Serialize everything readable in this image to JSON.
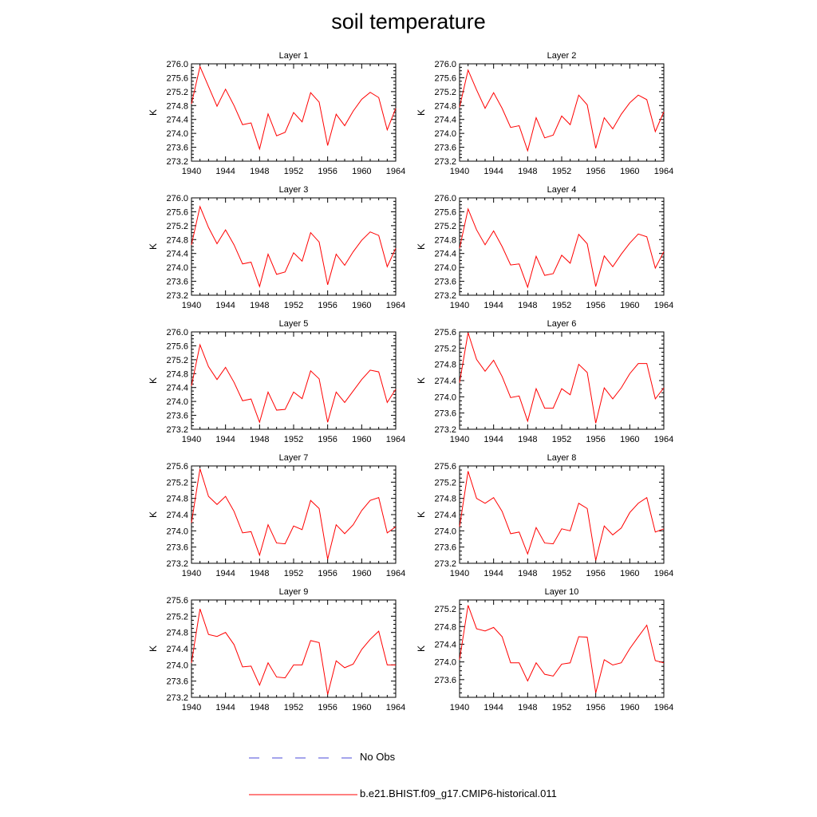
{
  "title": "soil temperature",
  "legend": {
    "no_obs": {
      "label": "No Obs",
      "color": "#4a4ad8"
    },
    "model": {
      "label": "b.e21.BHIST.f09_g17.CMIP6-historical.011",
      "color": "#ff0000"
    }
  },
  "chart_data": [
    {
      "type": "line",
      "title": "Layer 1",
      "ylabel": "K",
      "xlim": [
        1940,
        1964
      ],
      "ylim": [
        273.2,
        276.0
      ],
      "yticks": [
        "273.2",
        "273.6",
        "274.0",
        "274.4",
        "274.8",
        "275.2",
        "275.6",
        "276.0"
      ],
      "xticks": [
        "1940",
        "1944",
        "1948",
        "1952",
        "1956",
        "1960",
        "1964"
      ],
      "x": [
        1940,
        1941,
        1942,
        1943,
        1944,
        1945,
        1946,
        1947,
        1948,
        1949,
        1950,
        1951,
        1952,
        1953,
        1954,
        1955,
        1956,
        1957,
        1958,
        1959,
        1960,
        1961,
        1962,
        1963,
        1964
      ],
      "series": [
        {
          "name": "b.e21.BHIST.f09_g17.CMIP6-historical.011",
          "values": [
            274.85,
            275.92,
            275.35,
            274.78,
            275.27,
            274.8,
            274.25,
            274.3,
            273.55,
            274.56,
            273.93,
            274.03,
            274.6,
            274.33,
            275.17,
            274.9,
            273.65,
            274.55,
            274.22,
            274.64,
            274.98,
            275.18,
            275.03,
            274.1,
            274.72
          ]
        }
      ]
    },
    {
      "type": "line",
      "title": "Layer 2",
      "ylabel": "K",
      "xlim": [
        1940,
        1964
      ],
      "ylim": [
        273.2,
        276.0
      ],
      "yticks": [
        "273.2",
        "273.6",
        "274.0",
        "274.4",
        "274.8",
        "275.2",
        "275.6",
        "276.0"
      ],
      "xticks": [
        "1940",
        "1944",
        "1948",
        "1952",
        "1956",
        "1960",
        "1964"
      ],
      "x": [
        1940,
        1941,
        1942,
        1943,
        1944,
        1945,
        1946,
        1947,
        1948,
        1949,
        1950,
        1951,
        1952,
        1953,
        1954,
        1955,
        1956,
        1957,
        1958,
        1959,
        1960,
        1961,
        1962,
        1963,
        1964
      ],
      "series": [
        {
          "name": "b.e21.BHIST.f09_g17.CMIP6-historical.011",
          "values": [
            274.75,
            275.82,
            275.25,
            274.72,
            275.17,
            274.72,
            274.17,
            274.22,
            273.5,
            274.45,
            273.87,
            273.95,
            274.5,
            274.25,
            275.1,
            274.82,
            273.57,
            274.45,
            274.13,
            274.55,
            274.88,
            275.1,
            274.97,
            274.05,
            274.62
          ]
        }
      ]
    },
    {
      "type": "line",
      "title": "Layer 3",
      "ylabel": "K",
      "xlim": [
        1940,
        1964
      ],
      "ylim": [
        273.2,
        276.0
      ],
      "yticks": [
        "273.2",
        "273.6",
        "274.0",
        "274.4",
        "274.8",
        "275.2",
        "275.6",
        "276.0"
      ],
      "xticks": [
        "1940",
        "1944",
        "1948",
        "1952",
        "1956",
        "1960",
        "1964"
      ],
      "x": [
        1940,
        1941,
        1942,
        1943,
        1944,
        1945,
        1946,
        1947,
        1948,
        1949,
        1950,
        1951,
        1952,
        1953,
        1954,
        1955,
        1956,
        1957,
        1958,
        1959,
        1960,
        1961,
        1962,
        1963,
        1964
      ],
      "series": [
        {
          "name": "b.e21.BHIST.f09_g17.CMIP6-historical.011",
          "values": [
            274.65,
            275.75,
            275.15,
            274.68,
            275.08,
            274.65,
            274.1,
            274.15,
            273.45,
            274.38,
            273.8,
            273.87,
            274.42,
            274.18,
            275.0,
            274.73,
            273.5,
            274.38,
            274.06,
            274.45,
            274.78,
            275.02,
            274.92,
            274.02,
            274.55
          ]
        }
      ]
    },
    {
      "type": "line",
      "title": "Layer 4",
      "ylabel": "K",
      "xlim": [
        1940,
        1964
      ],
      "ylim": [
        273.2,
        276.0
      ],
      "yticks": [
        "273.2",
        "273.6",
        "274.0",
        "274.4",
        "274.8",
        "275.2",
        "275.6",
        "276.0"
      ],
      "xticks": [
        "1940",
        "1944",
        "1948",
        "1952",
        "1956",
        "1960",
        "1964"
      ],
      "x": [
        1940,
        1941,
        1942,
        1943,
        1944,
        1945,
        1946,
        1947,
        1948,
        1949,
        1950,
        1951,
        1952,
        1953,
        1954,
        1955,
        1956,
        1957,
        1958,
        1959,
        1960,
        1961,
        1962,
        1963,
        1964
      ],
      "series": [
        {
          "name": "b.e21.BHIST.f09_g17.CMIP6-historical.011",
          "values": [
            274.55,
            275.68,
            275.08,
            274.65,
            275.05,
            274.6,
            274.07,
            274.1,
            273.43,
            274.32,
            273.77,
            273.82,
            274.35,
            274.12,
            274.95,
            274.68,
            273.45,
            274.33,
            274.02,
            274.38,
            274.7,
            274.96,
            274.88,
            273.98,
            274.45
          ]
        }
      ]
    },
    {
      "type": "line",
      "title": "Layer 5",
      "ylabel": "K",
      "xlim": [
        1940,
        1964
      ],
      "ylim": [
        273.2,
        276.0
      ],
      "yticks": [
        "273.2",
        "273.6",
        "274.0",
        "274.4",
        "274.8",
        "275.2",
        "275.6",
        "276.0"
      ],
      "xticks": [
        "1940",
        "1944",
        "1948",
        "1952",
        "1956",
        "1960",
        "1964"
      ],
      "x": [
        1940,
        1941,
        1942,
        1943,
        1944,
        1945,
        1946,
        1947,
        1948,
        1949,
        1950,
        1951,
        1952,
        1953,
        1954,
        1955,
        1956,
        1957,
        1958,
        1959,
        1960,
        1961,
        1962,
        1963,
        1964
      ],
      "series": [
        {
          "name": "b.e21.BHIST.f09_g17.CMIP6-historical.011",
          "values": [
            274.45,
            275.63,
            275.0,
            274.63,
            274.98,
            274.55,
            274.02,
            274.07,
            273.4,
            274.27,
            273.75,
            273.77,
            274.27,
            274.08,
            274.88,
            274.65,
            273.4,
            274.27,
            273.97,
            274.3,
            274.63,
            274.9,
            274.85,
            273.97,
            274.35
          ]
        }
      ]
    },
    {
      "type": "line",
      "title": "Layer 6",
      "ylabel": "K",
      "xlim": [
        1940,
        1964
      ],
      "ylim": [
        273.2,
        275.6
      ],
      "yticks": [
        "273.2",
        "273.6",
        "274.0",
        "274.4",
        "274.8",
        "275.2",
        "275.6"
      ],
      "xticks": [
        "1940",
        "1944",
        "1948",
        "1952",
        "1956",
        "1960",
        "1964"
      ],
      "x": [
        1940,
        1941,
        1942,
        1943,
        1944,
        1945,
        1946,
        1947,
        1948,
        1949,
        1950,
        1951,
        1952,
        1953,
        1954,
        1955,
        1956,
        1957,
        1958,
        1959,
        1960,
        1961,
        1962,
        1963,
        1964
      ],
      "series": [
        {
          "name": "b.e21.BHIST.f09_g17.CMIP6-historical.011",
          "values": [
            274.35,
            275.58,
            274.92,
            274.63,
            274.9,
            274.5,
            273.98,
            274.02,
            273.4,
            274.2,
            273.72,
            273.72,
            274.2,
            274.05,
            274.8,
            274.6,
            273.35,
            274.22,
            273.95,
            274.22,
            274.57,
            274.82,
            274.82,
            273.95,
            274.22
          ]
        }
      ]
    },
    {
      "type": "line",
      "title": "Layer 7",
      "ylabel": "K",
      "xlim": [
        1940,
        1964
      ],
      "ylim": [
        273.2,
        275.6
      ],
      "yticks": [
        "273.2",
        "273.6",
        "274.0",
        "274.4",
        "274.8",
        "275.2",
        "275.6"
      ],
      "xticks": [
        "1940",
        "1944",
        "1948",
        "1952",
        "1956",
        "1960",
        "1964"
      ],
      "x": [
        1940,
        1941,
        1942,
        1943,
        1944,
        1945,
        1946,
        1947,
        1948,
        1949,
        1950,
        1951,
        1952,
        1953,
        1954,
        1955,
        1956,
        1957,
        1958,
        1959,
        1960,
        1961,
        1962,
        1963,
        1964
      ],
      "series": [
        {
          "name": "b.e21.BHIST.f09_g17.CMIP6-historical.011",
          "values": [
            274.2,
            275.53,
            274.85,
            274.65,
            274.85,
            274.48,
            273.95,
            273.98,
            273.4,
            274.15,
            273.7,
            273.68,
            274.12,
            274.03,
            274.75,
            274.55,
            273.3,
            274.15,
            273.93,
            274.15,
            274.5,
            274.75,
            274.82,
            273.95,
            274.1
          ]
        }
      ]
    },
    {
      "type": "line",
      "title": "Layer 8",
      "ylabel": "K",
      "xlim": [
        1940,
        1964
      ],
      "ylim": [
        273.2,
        275.6
      ],
      "yticks": [
        "273.2",
        "273.6",
        "274.0",
        "274.4",
        "274.8",
        "275.2",
        "275.6"
      ],
      "xticks": [
        "1940",
        "1944",
        "1948",
        "1952",
        "1956",
        "1960",
        "1964"
      ],
      "x": [
        1940,
        1941,
        1942,
        1943,
        1944,
        1945,
        1946,
        1947,
        1948,
        1949,
        1950,
        1951,
        1952,
        1953,
        1954,
        1955,
        1956,
        1957,
        1958,
        1959,
        1960,
        1961,
        1962,
        1963,
        1964
      ],
      "series": [
        {
          "name": "b.e21.BHIST.f09_g17.CMIP6-historical.011",
          "values": [
            274.1,
            275.47,
            274.8,
            274.68,
            274.82,
            274.48,
            273.93,
            273.97,
            273.43,
            274.08,
            273.7,
            273.68,
            274.05,
            274.0,
            274.68,
            274.55,
            273.27,
            274.12,
            273.9,
            274.07,
            274.45,
            274.68,
            274.82,
            273.97,
            274.05
          ]
        }
      ]
    },
    {
      "type": "line",
      "title": "Layer 9",
      "ylabel": "K",
      "xlim": [
        1940,
        1964
      ],
      "ylim": [
        273.2,
        275.6
      ],
      "yticks": [
        "273.2",
        "273.6",
        "274.0",
        "274.4",
        "274.8",
        "275.2",
        "275.6"
      ],
      "xticks": [
        "1940",
        "1944",
        "1948",
        "1952",
        "1956",
        "1960",
        "1964"
      ],
      "x": [
        1940,
        1941,
        1942,
        1943,
        1944,
        1945,
        1946,
        1947,
        1948,
        1949,
        1950,
        1951,
        1952,
        1953,
        1954,
        1955,
        1956,
        1957,
        1958,
        1959,
        1960,
        1961,
        1962,
        1963,
        1964
      ],
      "series": [
        {
          "name": "b.e21.BHIST.f09_g17.CMIP6-historical.011",
          "values": [
            274.05,
            275.38,
            274.75,
            274.7,
            274.8,
            274.5,
            273.95,
            273.97,
            273.5,
            274.05,
            273.7,
            273.68,
            274.0,
            274.0,
            274.6,
            274.55,
            273.27,
            274.1,
            273.93,
            274.02,
            274.38,
            274.63,
            274.83,
            274.0,
            274.0
          ]
        }
      ]
    },
    {
      "type": "line",
      "title": "Layer 10",
      "ylabel": "K",
      "xlim": [
        1940,
        1964
      ],
      "ylim": [
        273.2,
        275.4
      ],
      "yticks": [
        "273.6",
        "274.0",
        "274.4",
        "274.8",
        "275.2"
      ],
      "xticks": [
        "1940",
        "1944",
        "1948",
        "1952",
        "1956",
        "1960",
        "1964"
      ],
      "x": [
        1940,
        1941,
        1942,
        1943,
        1944,
        1945,
        1946,
        1947,
        1948,
        1949,
        1950,
        1951,
        1952,
        1953,
        1954,
        1955,
        1956,
        1957,
        1958,
        1959,
        1960,
        1961,
        1962,
        1963,
        1964
      ],
      "series": [
        {
          "name": "b.e21.BHIST.f09_g17.CMIP6-historical.011",
          "values": [
            274.05,
            275.28,
            274.75,
            274.7,
            274.78,
            274.57,
            273.98,
            273.98,
            273.57,
            273.98,
            273.72,
            273.68,
            273.95,
            273.98,
            274.57,
            274.56,
            273.3,
            274.05,
            273.93,
            273.98,
            274.3,
            274.57,
            274.83,
            274.03,
            273.98
          ]
        }
      ]
    }
  ]
}
